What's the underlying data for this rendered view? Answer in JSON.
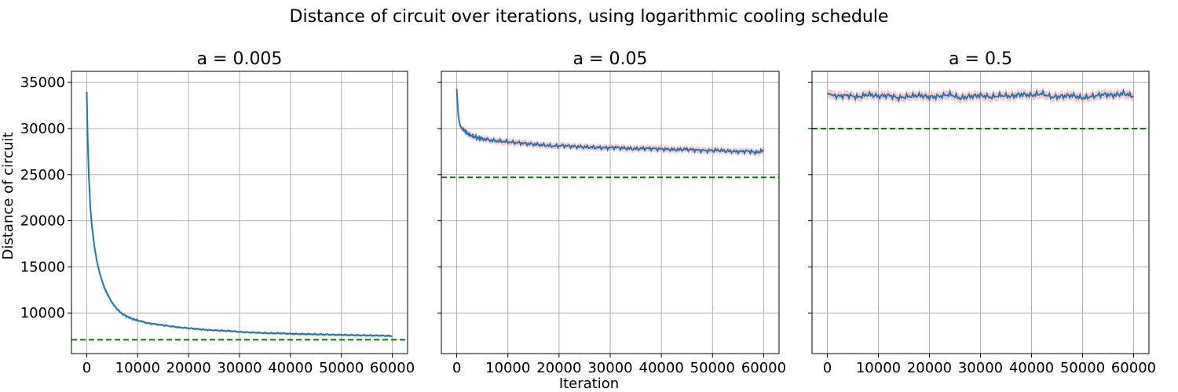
{
  "figure": {
    "title": "Distance of circuit over iterations, using logarithmic cooling schedule",
    "xlabel": "Iteration",
    "ylabel": "Distance of circuit"
  },
  "colors": {
    "mean_line": "#1f77b4",
    "band": "#ff9999",
    "reference_line": "#008000",
    "grid": "#b0b0b0"
  },
  "chart_data": [
    {
      "type": "line",
      "title": "a = 0.005",
      "xlim": [
        -3000,
        63000
      ],
      "ylim": [
        5600,
        36200
      ],
      "xticks": [
        0,
        10000,
        20000,
        30000,
        40000,
        50000,
        60000
      ],
      "yticks": [
        10000,
        15000,
        20000,
        25000,
        30000,
        35000
      ],
      "grid": true,
      "shared_y": true,
      "reference_line": 7100,
      "band_halfwidth": 120,
      "series": [
        {
          "x": [
            0,
            200,
            400,
            700,
            1000,
            1500,
            2000,
            2500,
            3000,
            3500,
            4000,
            5000,
            6000,
            7000,
            8000,
            9000,
            10000,
            12000,
            14000,
            16000,
            18000,
            20000,
            22000,
            24000,
            26000,
            28000,
            30000,
            32000,
            34000,
            36000,
            38000,
            40000,
            42000,
            44000,
            46000,
            48000,
            50000,
            52000,
            54000,
            56000,
            58000,
            60000
          ],
          "values": [
            34000,
            28500,
            25000,
            21500,
            19500,
            17200,
            15600,
            14400,
            13500,
            12700,
            12100,
            11100,
            10400,
            9900,
            9600,
            9350,
            9200,
            8900,
            8750,
            8600,
            8450,
            8350,
            8250,
            8150,
            8100,
            8050,
            7950,
            7900,
            7850,
            7800,
            7800,
            7750,
            7720,
            7700,
            7680,
            7650,
            7620,
            7600,
            7580,
            7560,
            7550,
            7500
          ]
        }
      ]
    },
    {
      "type": "line",
      "title": "a = 0.05",
      "xlim": [
        -3000,
        63000
      ],
      "ylim": [
        5600,
        36200
      ],
      "xticks": [
        0,
        10000,
        20000,
        30000,
        40000,
        50000,
        60000
      ],
      "yticks": [
        10000,
        15000,
        20000,
        25000,
        30000,
        35000
      ],
      "grid": true,
      "shared_y": true,
      "reference_line": 24700,
      "band_halfwidth": 350,
      "series": [
        {
          "x": [
            0,
            300,
            600,
            1000,
            1500,
            2000,
            3000,
            4000,
            5000,
            7000,
            9000,
            11000,
            13000,
            15000,
            17000,
            19000,
            21000,
            23000,
            25000,
            27000,
            29000,
            31000,
            33000,
            35000,
            37000,
            39000,
            41000,
            43000,
            45000,
            47000,
            49000,
            51000,
            53000,
            55000,
            57000,
            58500,
            60000
          ],
          "values": [
            34300,
            31500,
            30400,
            30000,
            29800,
            29500,
            29200,
            29000,
            28900,
            28700,
            28600,
            28500,
            28400,
            28300,
            28200,
            28100,
            28150,
            28050,
            28000,
            27950,
            27900,
            27950,
            27850,
            27800,
            27850,
            27800,
            27750,
            27700,
            27750,
            27650,
            27600,
            27650,
            27550,
            27500,
            27550,
            27400,
            27600
          ]
        }
      ]
    },
    {
      "type": "line",
      "title": "a = 0.5",
      "xlim": [
        -3000,
        63000
      ],
      "ylim": [
        5600,
        36200
      ],
      "xticks": [
        0,
        10000,
        20000,
        30000,
        40000,
        50000,
        60000
      ],
      "yticks": [
        10000,
        15000,
        20000,
        25000,
        30000,
        35000
      ],
      "grid": true,
      "shared_y": true,
      "reference_line": 30000,
      "band_halfwidth": 500,
      "series": [
        {
          "x": [
            0,
            2000,
            4000,
            6000,
            8000,
            10000,
            12000,
            14000,
            16000,
            18000,
            20000,
            22000,
            24000,
            26000,
            28000,
            30000,
            32000,
            34000,
            36000,
            38000,
            40000,
            42000,
            44000,
            46000,
            48000,
            50000,
            52000,
            54000,
            56000,
            58000,
            60000
          ],
          "values": [
            33800,
            33500,
            33600,
            33400,
            33700,
            33500,
            33600,
            33300,
            33500,
            33600,
            33400,
            33500,
            33700,
            33300,
            33500,
            33600,
            33400,
            33600,
            33500,
            33700,
            33600,
            33800,
            33400,
            33500,
            33600,
            33300,
            33500,
            33700,
            33600,
            33800,
            33500
          ]
        }
      ]
    }
  ]
}
